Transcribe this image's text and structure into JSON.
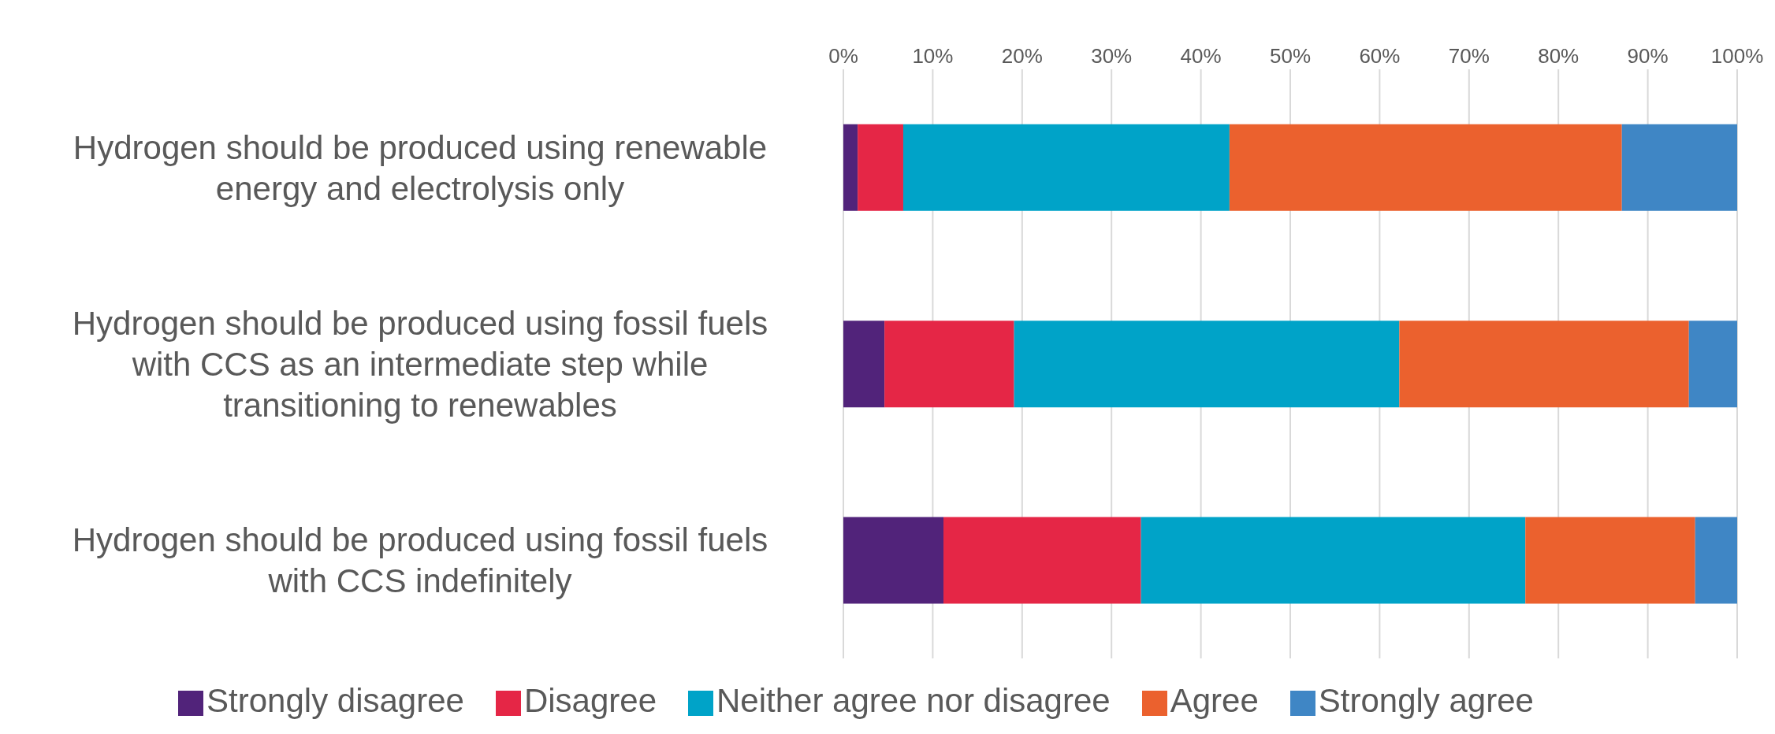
{
  "chart_data": {
    "type": "bar",
    "orientation": "horizontal",
    "stacked": true,
    "categories": [
      "Hydrogen should be produced using renewable energy and electrolysis only",
      "Hydrogen should be produced using fossil fuels with CCS as an intermediate step while transitioning to renewables",
      "Hydrogen should be produced using fossil fuels with CCS indefinitely"
    ],
    "series": [
      {
        "name": "Strongly disagree",
        "color": "#51237a",
        "values": [
          1.6,
          4.6,
          11.2
        ]
      },
      {
        "name": "Disagree",
        "color": "#e52646",
        "values": [
          5.1,
          14.5,
          22.1
        ]
      },
      {
        "name": "Neither agree nor disagree",
        "color": "#00a3c8",
        "values": [
          36.5,
          43.1,
          43.0
        ]
      },
      {
        "name": "Agree",
        "color": "#eb612e",
        "values": [
          43.9,
          32.4,
          19.0
        ]
      },
      {
        "name": "Strongly agree",
        "color": "#3f86c5",
        "values": [
          12.9,
          5.4,
          4.7
        ]
      }
    ],
    "xlim": [
      0,
      100
    ],
    "xticks": [
      {
        "value": 0,
        "label": "0%"
      },
      {
        "value": 10,
        "label": "10%"
      },
      {
        "value": 20,
        "label": "20%"
      },
      {
        "value": 30,
        "label": "30%"
      },
      {
        "value": 40,
        "label": "40%"
      },
      {
        "value": 50,
        "label": "50%"
      },
      {
        "value": 60,
        "label": "60%"
      },
      {
        "value": 70,
        "label": "70%"
      },
      {
        "value": 80,
        "label": "80%"
      },
      {
        "value": 90,
        "label": "90%"
      },
      {
        "value": 100,
        "label": "100%"
      }
    ],
    "grid": "x",
    "legend": "bottom"
  }
}
